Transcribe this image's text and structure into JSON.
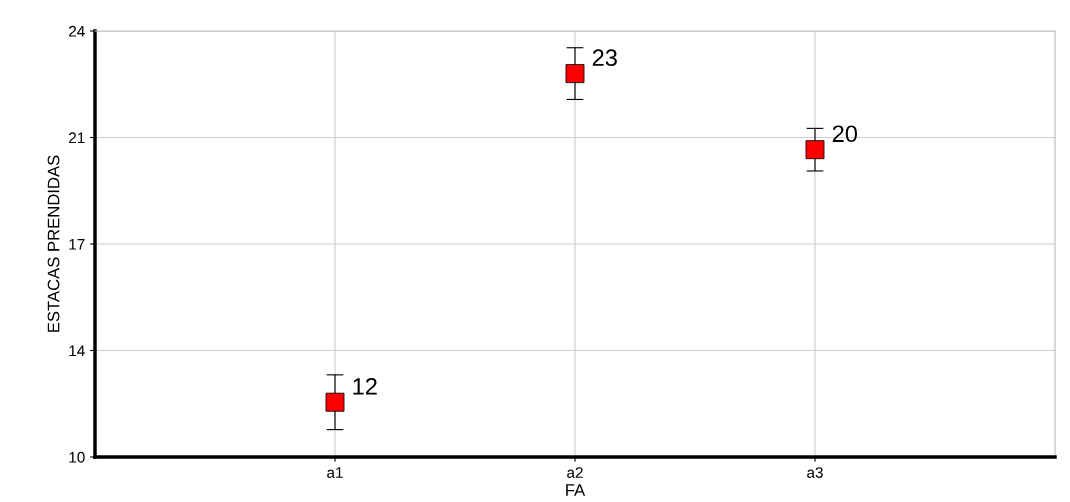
{
  "chart_data": {
    "type": "scatter",
    "xlabel": "FA",
    "ylabel": "ESTACAS PRENDIDAS",
    "categories": [
      null,
      "a1",
      "a2",
      "a3",
      null
    ],
    "series": [
      {
        "color": "#ff0000",
        "values": [
          null,
          11.8,
          22.6,
          20.1,
          null
        ],
        "errors": [
          null,
          0.9,
          0.85,
          0.7,
          null
        ],
        "value_labels": [
          null,
          "12",
          "23",
          "20",
          null
        ]
      }
    ],
    "ylim": [
      10,
      24
    ],
    "yticks": [
      10,
      {
        "value": 13.5,
        "label": "14"
      },
      17,
      {
        "value": 20.5,
        "label": "21"
      },
      24
    ],
    "grid": true,
    "marker": "square",
    "legend": false
  }
}
